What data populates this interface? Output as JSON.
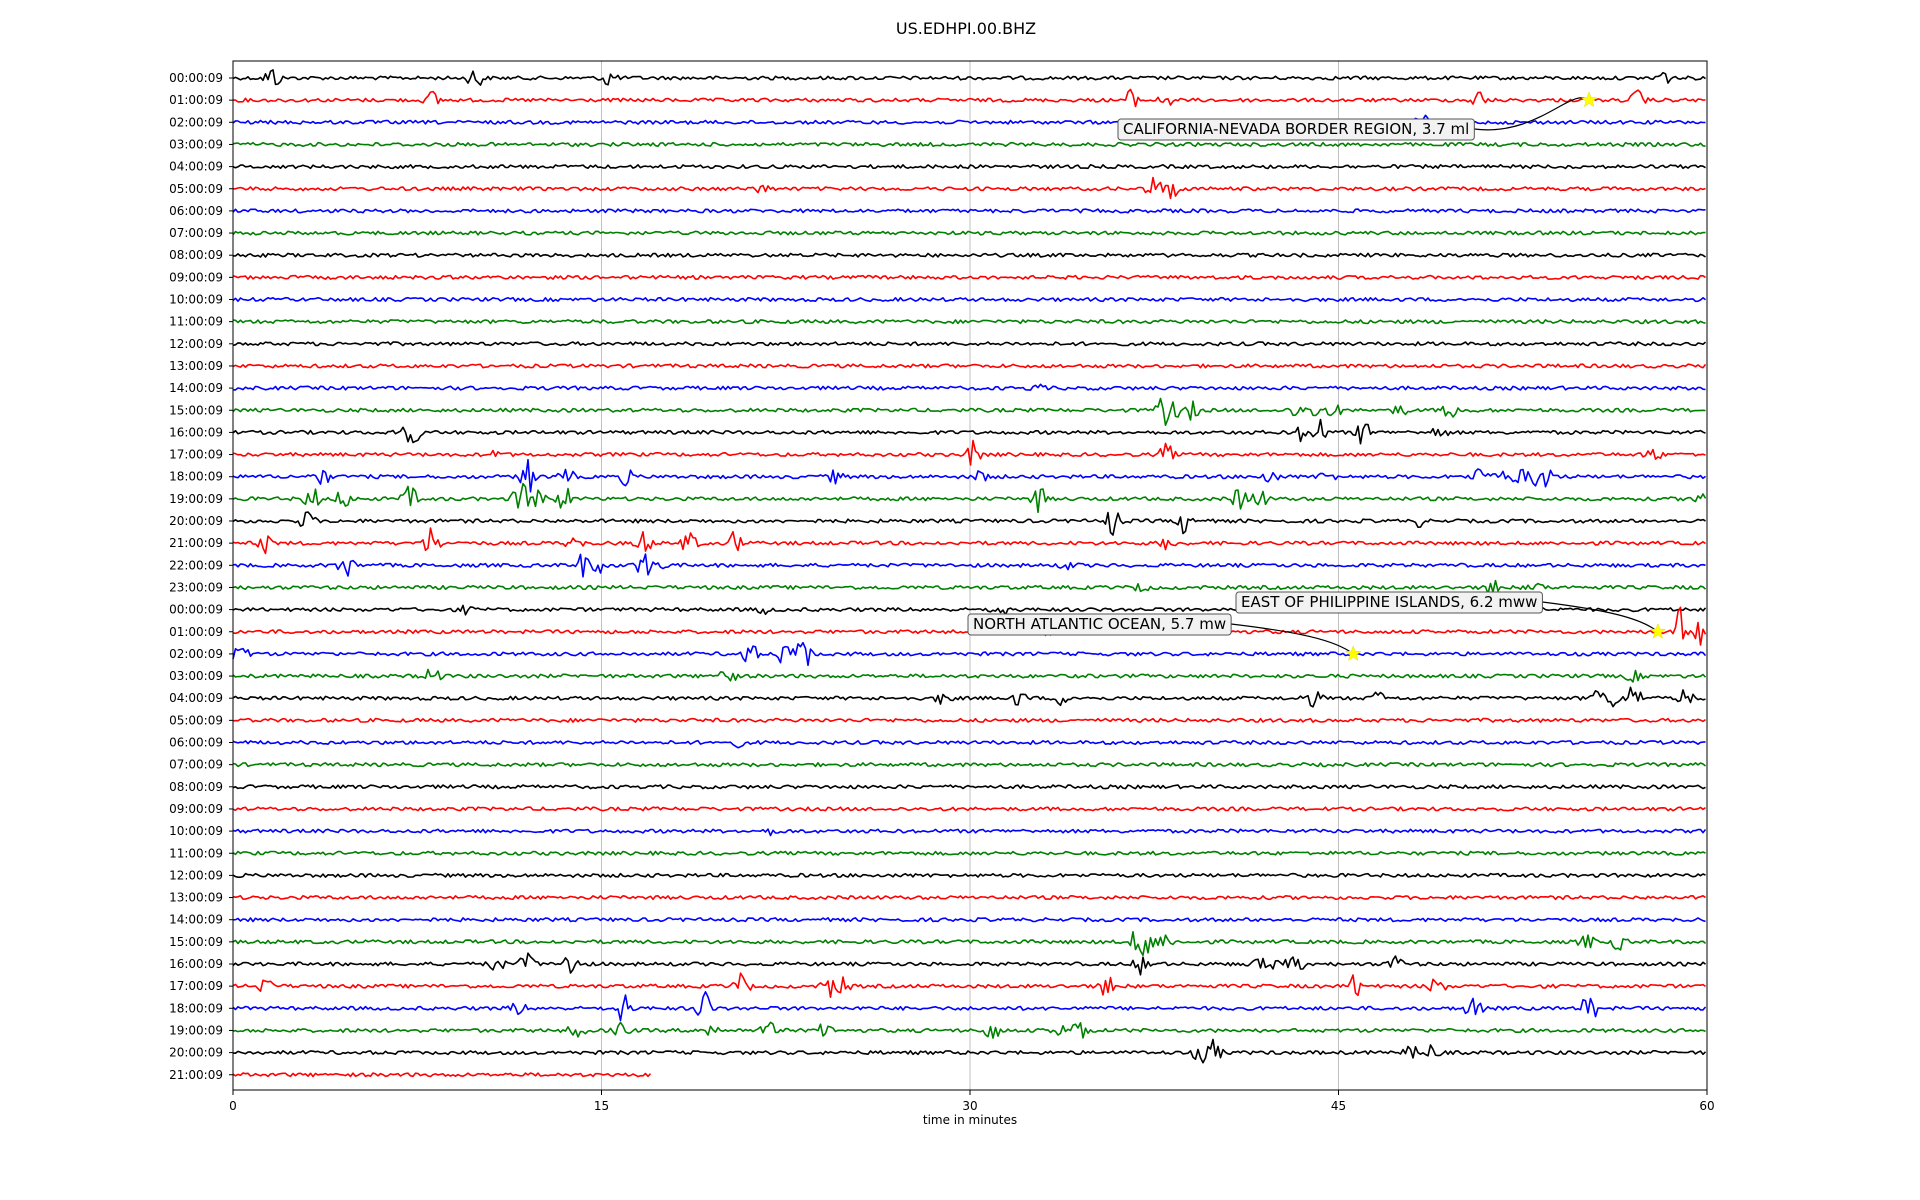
{
  "chart_data": {
    "type": "line",
    "title": "US.EDHPI.00.BHZ",
    "xlabel": "time in minutes",
    "ylabel": "",
    "xlim": [
      0,
      60
    ],
    "x_ticks": [
      "0",
      "15",
      "30",
      "45",
      "60"
    ],
    "grid": "vertical",
    "trace_colors": [
      "#000000",
      "#ff0000",
      "#0000ff",
      "#008000"
    ],
    "rows": [
      "00:00:09",
      "01:00:09",
      "02:00:09",
      "03:00:09",
      "04:00:09",
      "05:00:09",
      "06:00:09",
      "07:00:09",
      "08:00:09",
      "09:00:09",
      "10:00:09",
      "11:00:09",
      "12:00:09",
      "13:00:09",
      "14:00:09",
      "15:00:09",
      "16:00:09",
      "17:00:09",
      "18:00:09",
      "19:00:09",
      "20:00:09",
      "21:00:09",
      "22:00:09",
      "23:00:09",
      "00:00:09",
      "01:00:09",
      "02:00:09",
      "03:00:09",
      "04:00:09",
      "05:00:09",
      "06:00:09",
      "07:00:09",
      "08:00:09",
      "09:00:09",
      "10:00:09",
      "11:00:09",
      "12:00:09",
      "13:00:09",
      "14:00:09",
      "15:00:09",
      "16:00:09",
      "17:00:09",
      "18:00:09",
      "19:00:09",
      "20:00:09",
      "21:00:09"
    ],
    "last_row_end_minute": 17,
    "spikes": [
      [
        0,
        1.6,
        1.0
      ],
      [
        0,
        9.9,
        1.0
      ],
      [
        0,
        15.3,
        0.8
      ],
      [
        0,
        58.1,
        1.0
      ],
      [
        1,
        8.1,
        0.7
      ],
      [
        1,
        36.5,
        0.8
      ],
      [
        1,
        38.0,
        0.5
      ],
      [
        1,
        50.7,
        0.8
      ],
      [
        1,
        57.2,
        0.8
      ],
      [
        2,
        48.4,
        0.6
      ],
      [
        5,
        21.5,
        0.4
      ],
      [
        5,
        37.5,
        1.0
      ],
      [
        5,
        38.2,
        1.0
      ],
      [
        14,
        32.7,
        0.3
      ],
      [
        15,
        37.9,
        1.2
      ],
      [
        15,
        38.2,
        1.0
      ],
      [
        15,
        39.0,
        0.7
      ],
      [
        15,
        43.3,
        0.6
      ],
      [
        15,
        44.1,
        0.6
      ],
      [
        15,
        44.8,
        0.5
      ],
      [
        15,
        47.5,
        0.4
      ],
      [
        15,
        49.6,
        0.8
      ],
      [
        16,
        6.9,
        1.0
      ],
      [
        16,
        7.3,
        1.0
      ],
      [
        16,
        43.5,
        0.7
      ],
      [
        16,
        44.2,
        1.1
      ],
      [
        16,
        46.0,
        1.0
      ],
      [
        16,
        49.1,
        0.5
      ],
      [
        17,
        10.7,
        0.3
      ],
      [
        17,
        30.1,
        1.0
      ],
      [
        17,
        38.0,
        0.8
      ],
      [
        17,
        57.8,
        0.6
      ],
      [
        18,
        3.6,
        0.8
      ],
      [
        18,
        12.0,
        1.5
      ],
      [
        18,
        13.6,
        0.6
      ],
      [
        18,
        16.0,
        0.6
      ],
      [
        18,
        24.5,
        0.5
      ],
      [
        18,
        30.4,
        0.5
      ],
      [
        18,
        42.2,
        0.6
      ],
      [
        18,
        44.5,
        0.5
      ],
      [
        18,
        50.7,
        0.7
      ],
      [
        18,
        51.5,
        0.6
      ],
      [
        18,
        52.4,
        0.8
      ],
      [
        18,
        53.0,
        0.7
      ],
      [
        18,
        53.5,
        1.0
      ],
      [
        19,
        3.2,
        1.0
      ],
      [
        19,
        4.5,
        0.8
      ],
      [
        19,
        7.2,
        1.0
      ],
      [
        19,
        11.7,
        1.5
      ],
      [
        19,
        12.4,
        1.0
      ],
      [
        19,
        13.5,
        1.0
      ],
      [
        19,
        32.8,
        1.0
      ],
      [
        19,
        41.0,
        1.0
      ],
      [
        19,
        41.8,
        0.8
      ],
      [
        19,
        59.8,
        1.0
      ],
      [
        20,
        3.0,
        0.8
      ],
      [
        20,
        35.8,
        1.2
      ],
      [
        20,
        38.8,
        1.2
      ],
      [
        20,
        48.3,
        0.4
      ],
      [
        21,
        1.3,
        0.7
      ],
      [
        21,
        8.1,
        1.4
      ],
      [
        21,
        13.9,
        0.6
      ],
      [
        21,
        16.7,
        1.0
      ],
      [
        21,
        18.6,
        1.0
      ],
      [
        21,
        20.4,
        1.0
      ],
      [
        21,
        38.0,
        0.5
      ],
      [
        22,
        4.6,
        1.0
      ],
      [
        22,
        14.2,
        1.0
      ],
      [
        22,
        14.9,
        0.6
      ],
      [
        22,
        16.7,
        1.2
      ],
      [
        22,
        17.3,
        0.6
      ],
      [
        22,
        34.0,
        0.3
      ],
      [
        23,
        37.0,
        0.3
      ],
      [
        23,
        51.3,
        0.7
      ],
      [
        23,
        53.0,
        0.4
      ],
      [
        24,
        9.5,
        0.3
      ],
      [
        24,
        21.6,
        0.3
      ],
      [
        24,
        31.2,
        0.7
      ],
      [
        24,
        52.5,
        0.3
      ],
      [
        25,
        33.0,
        0.3
      ],
      [
        25,
        58.9,
        2.0
      ],
      [
        25,
        59.7,
        1.1
      ],
      [
        26,
        0.3,
        0.9
      ],
      [
        26,
        21.0,
        1.1
      ],
      [
        26,
        22.4,
        0.8
      ],
      [
        26,
        23.0,
        0.9
      ],
      [
        26,
        23.3,
        1.4
      ],
      [
        27,
        8.1,
        0.8
      ],
      [
        27,
        20.1,
        1.0
      ],
      [
        27,
        57.0,
        0.4
      ],
      [
        28,
        28.9,
        0.5
      ],
      [
        28,
        32.0,
        0.6
      ],
      [
        28,
        33.8,
        0.6
      ],
      [
        28,
        43.8,
        0.5
      ],
      [
        28,
        44.0,
        0.6
      ],
      [
        28,
        46.6,
        0.5
      ],
      [
        28,
        55.6,
        0.8
      ],
      [
        28,
        56.1,
        0.7
      ],
      [
        28,
        57.0,
        1.2
      ],
      [
        28,
        59.1,
        0.7
      ],
      [
        30,
        20.5,
        0.3
      ],
      [
        34,
        22.0,
        0.3
      ],
      [
        39,
        36.8,
        1.0
      ],
      [
        39,
        37.1,
        1.6
      ],
      [
        39,
        37.9,
        0.8
      ],
      [
        39,
        55.1,
        0.6
      ],
      [
        39,
        56.4,
        0.6
      ],
      [
        40,
        10.7,
        0.7
      ],
      [
        40,
        12.0,
        0.9
      ],
      [
        40,
        13.8,
        1.2
      ],
      [
        40,
        37.0,
        0.8
      ],
      [
        40,
        41.7,
        0.6
      ],
      [
        40,
        42.6,
        0.7
      ],
      [
        40,
        43.3,
        0.6
      ],
      [
        40,
        47.3,
        0.6
      ],
      [
        41,
        1.3,
        0.6
      ],
      [
        41,
        20.7,
        1.0
      ],
      [
        41,
        24.3,
        1.0
      ],
      [
        41,
        24.8,
        0.6
      ],
      [
        41,
        35.6,
        1.0
      ],
      [
        41,
        45.7,
        1.0
      ],
      [
        41,
        49.0,
        0.8
      ],
      [
        42,
        11.6,
        0.5
      ],
      [
        42,
        15.9,
        1.3
      ],
      [
        42,
        19.2,
        1.5
      ],
      [
        42,
        50.5,
        1.1
      ],
      [
        42,
        55.2,
        1.2
      ],
      [
        43,
        14.0,
        0.7
      ],
      [
        43,
        15.8,
        0.6
      ],
      [
        43,
        19.4,
        0.7
      ],
      [
        43,
        21.8,
        0.7
      ],
      [
        43,
        24.1,
        0.6
      ],
      [
        43,
        30.9,
        1.0
      ],
      [
        43,
        33.6,
        0.6
      ],
      [
        43,
        34.5,
        1.0
      ],
      [
        44,
        39.4,
        0.8
      ],
      [
        44,
        39.9,
        1.0
      ],
      [
        44,
        48.0,
        0.6
      ],
      [
        44,
        48.8,
        0.6
      ]
    ],
    "annotations": [
      {
        "text": "CALIFORNIA-NEVADA BORDER REGION, 3.7 ml",
        "row": 1,
        "minute": 55.2
      },
      {
        "text": "EAST OF PHILIPPINE ISLANDS, 6.2 mww",
        "row": 25,
        "minute": 58.0
      },
      {
        "text": "NORTH ATLANTIC OCEAN, 5.7 mw",
        "row": 26,
        "minute": 45.6
      }
    ]
  }
}
